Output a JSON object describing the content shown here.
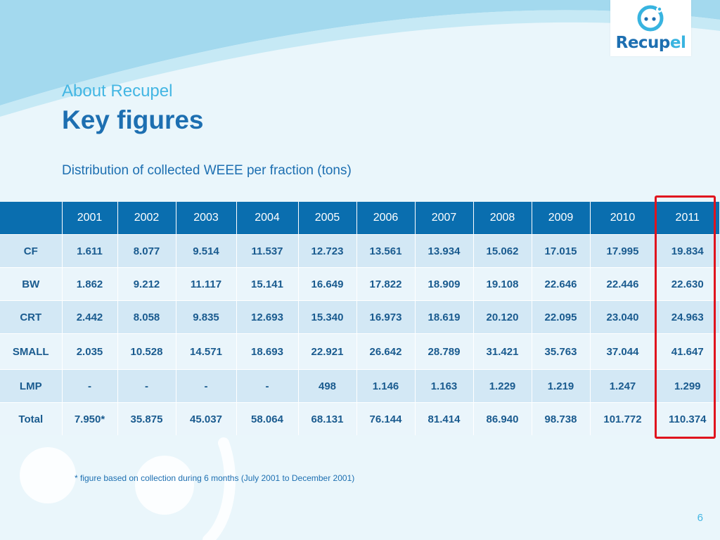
{
  "logo": {
    "word_main": "Recup",
    "word_accent": "el",
    "brand_color": "#1d6fb1",
    "accent_color": "#38b4e0"
  },
  "header": {
    "subtitle": "About Recupel",
    "title": "Key figures",
    "caption": "Distribution of collected WEEE per fraction (tons)"
  },
  "table": {
    "corner": "",
    "years": [
      "2001",
      "2002",
      "2003",
      "2004",
      "2005",
      "2006",
      "2007",
      "2008",
      "2009",
      "2010",
      "2011"
    ],
    "rows": [
      {
        "label": "CF",
        "values": [
          "1.611",
          "8.077",
          "9.514",
          "11.537",
          "12.723",
          "13.561",
          "13.934",
          "15.062",
          "17.015",
          "17.995",
          "19.834"
        ]
      },
      {
        "label": "BW",
        "values": [
          "1.862",
          "9.212",
          "11.117",
          "15.141",
          "16.649",
          "17.822",
          "18.909",
          "19.108",
          "22.646",
          "22.446",
          "22.630"
        ]
      },
      {
        "label": "CRT",
        "values": [
          "2.442",
          "8.058",
          "9.835",
          "12.693",
          "15.340",
          "16.973",
          "18.619",
          "20.120",
          "22.095",
          "23.040",
          "24.963"
        ]
      },
      {
        "label": "SMALL",
        "values": [
          "2.035",
          "10.528",
          "14.571",
          "18.693",
          "22.921",
          "26.642",
          "28.789",
          "31.421",
          "35.763",
          "37.044",
          "41.647"
        ]
      },
      {
        "label": "LMP",
        "values": [
          "-",
          "-",
          "-",
          "-",
          "498",
          "1.146",
          "1.163",
          "1.229",
          "1.219",
          "1.247",
          "1.299"
        ]
      },
      {
        "label": "Total",
        "values": [
          "7.950*",
          "35.875",
          "45.037",
          "58.064",
          "68.131",
          "76.144",
          "81.414",
          "86.940",
          "98.738",
          "101.772",
          "110.374"
        ]
      }
    ],
    "header_color": "#0a6eaf",
    "highlight_color": "#e0141e"
  },
  "footnote": "* figure based on collection during 6 months (July 2001 to December 2001)",
  "page_number": "6"
}
